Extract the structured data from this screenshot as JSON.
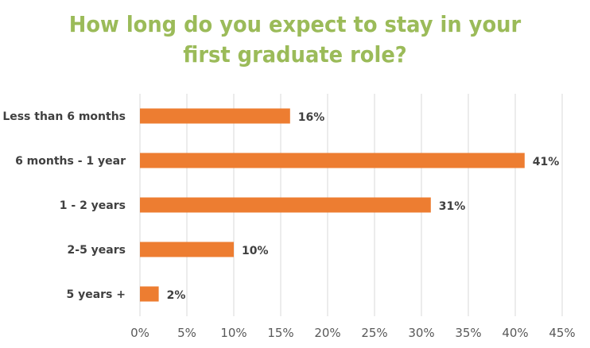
{
  "chart_data": {
    "type": "bar",
    "orientation": "horizontal",
    "title_lines": [
      "How long do you expect to stay in your",
      "first graduate role?"
    ],
    "categories": [
      "Less than 6 months",
      "6 months - 1 year",
      "1 - 2 years",
      "2-5 years",
      "5 years +"
    ],
    "values": [
      16,
      41,
      31,
      10,
      2
    ],
    "data_labels": [
      "16%",
      "41%",
      "31%",
      "10%",
      "2%"
    ],
    "xticks": [
      "0%",
      "5%",
      "10%",
      "15%",
      "20%",
      "25%",
      "30%",
      "35%",
      "40%",
      "45%"
    ],
    "xlim": [
      0,
      45
    ],
    "grid": true,
    "legend": "none",
    "colors": {
      "bar": "#ed7d31",
      "title": "#9bbb59",
      "grid": "#d9d9d9",
      "text": "#404040"
    }
  }
}
